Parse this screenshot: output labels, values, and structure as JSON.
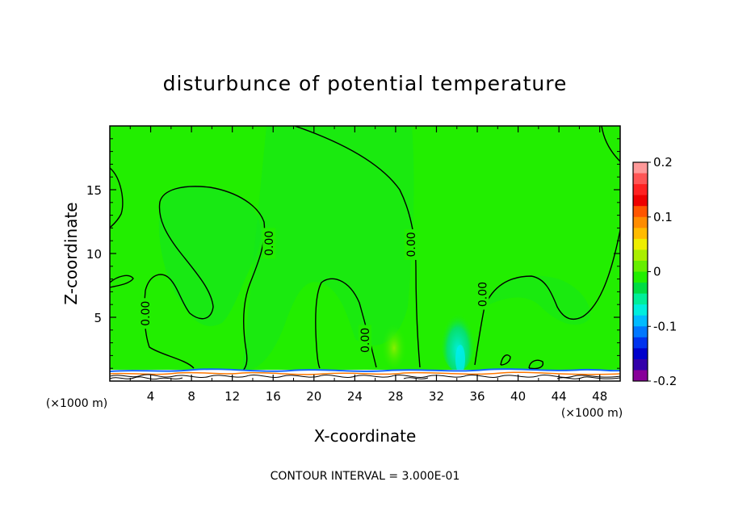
{
  "chart_data": {
    "type": "heatmap",
    "title": "disturbunce of potential temperature",
    "xlabel": "X-coordinate",
    "ylabel": "Z-coordinate",
    "x_unit": "(×1000 m)",
    "y_unit": "(×1000 m)",
    "xlim": [
      0,
      50
    ],
    "ylim": [
      0,
      20
    ],
    "x_ticks": [
      4,
      8,
      12,
      16,
      20,
      24,
      28,
      32,
      36,
      40,
      44,
      48
    ],
    "y_ticks": [
      5,
      10,
      15
    ],
    "contour_interval_text": "CONTOUR INTERVAL = 3.000E-01",
    "contour_label": "0.00",
    "contour_label_points": [
      {
        "x": 3.5,
        "y": 5.3
      },
      {
        "x": 15.6,
        "y": 10.8
      },
      {
        "x": 25.0,
        "y": 3.2
      },
      {
        "x": 29.5,
        "y": 10.7
      },
      {
        "x": 36.5,
        "y": 6.8
      }
    ],
    "colorbar": {
      "min": -0.2,
      "max": 0.2,
      "tick_labels": [
        "0.2",
        "0.1",
        "0",
        "-0.1",
        "-0.2"
      ],
      "tick_values": [
        0.2,
        0.1,
        0,
        -0.1,
        -0.2
      ],
      "colors": [
        "#ff9999",
        "#ff5555",
        "#ff2222",
        "#ee0000",
        "#ff5500",
        "#ff8c00",
        "#ffbb00",
        "#eeee00",
        "#aaee00",
        "#66ee00",
        "#22ee00",
        "#00dd44",
        "#00ee99",
        "#00eedd",
        "#00bbff",
        "#0077ff",
        "#0033ee",
        "#0000cc",
        "#3300aa",
        "#880099"
      ]
    },
    "dominant_value": 0.0,
    "features": [
      {
        "x": 28.0,
        "y": 2.0,
        "value": 0.02
      },
      {
        "x": 34.0,
        "y": 2.5,
        "value": -0.03
      }
    ]
  }
}
